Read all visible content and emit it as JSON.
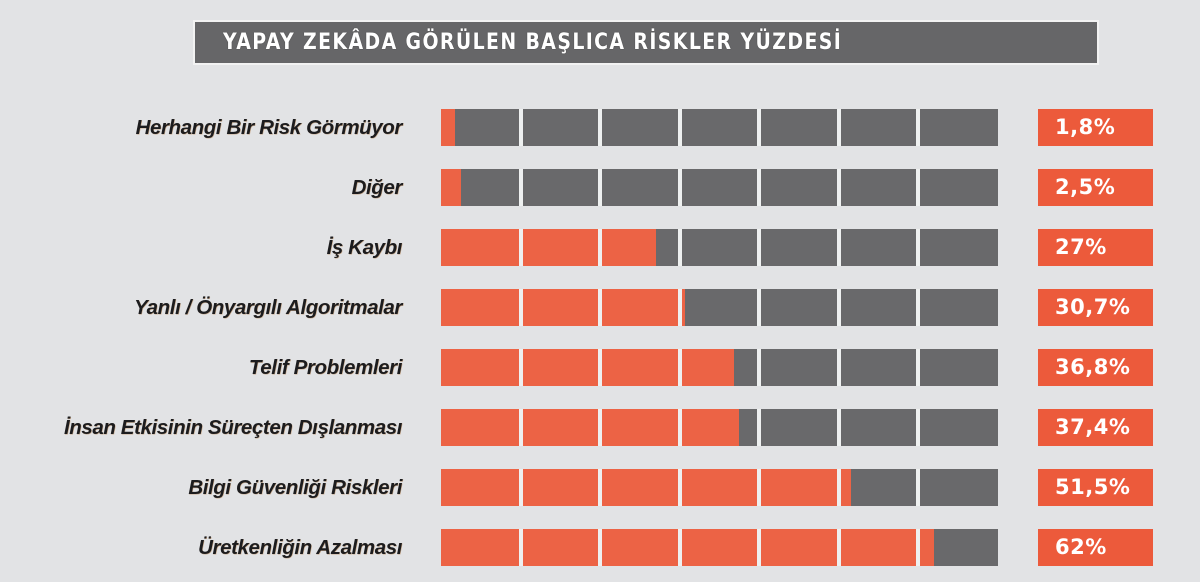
{
  "title": "YAPAY ZEKÂDA GÖRÜLEN BAŞLICA RİSKLER YÜZDESİ",
  "colors": {
    "background": "#e2e3e5",
    "title_box": "#666668",
    "bar_track": "#69696b",
    "bar_fill": "#ec6345",
    "value_box": "#ec5a3b",
    "segment_divider": "#eef0f0"
  },
  "scale": {
    "max_percent": 70,
    "segments": 7,
    "segment_percent": 10
  },
  "rows": [
    {
      "label": "Herhangi Bir Risk Görmüyor",
      "value": 1.8,
      "display": "1,8%"
    },
    {
      "label": "Diğer",
      "value": 2.5,
      "display": "2,5%"
    },
    {
      "label": "İş Kaybı",
      "value": 27,
      "display": "27%"
    },
    {
      "label": "Yanlı / Önyargılı Algoritmalar",
      "value": 30.7,
      "display": "30,7%"
    },
    {
      "label": "Telif Problemleri",
      "value": 36.8,
      "display": "36,8%"
    },
    {
      "label": "İnsan Etkisinin Süreçten Dışlanması",
      "value": 37.4,
      "display": "37,4%"
    },
    {
      "label": "Bilgi Güvenliği Riskleri",
      "value": 51.5,
      "display": "51,5%"
    },
    {
      "label": "Üretkenliğin Azalması",
      "value": 62,
      "display": "62%"
    }
  ],
  "chart_data": {
    "type": "bar",
    "orientation": "horizontal",
    "title": "YAPAY ZEKÂDA GÖRÜLEN BAŞLICA RİSKLER YÜZDESİ",
    "categories": [
      "Herhangi Bir Risk Görmüyor",
      "Diğer",
      "İş Kaybı",
      "Yanlı / Önyargılı Algoritmalar",
      "Telif Problemleri",
      "İnsan Etkisinin Süreçten Dışlanması",
      "Bilgi Güvenliği Riskleri",
      "Üretkenliğin Azalması"
    ],
    "values": [
      1.8,
      2.5,
      27,
      30.7,
      36.8,
      37.4,
      51.5,
      62
    ],
    "data_labels": [
      "1,8%",
      "2,5%",
      "27%",
      "30,7%",
      "36,8%",
      "37,4%",
      "51,5%",
      "62%"
    ],
    "xlabel": "",
    "ylabel": "",
    "xlim": [
      0,
      70
    ],
    "unit": "%",
    "grid": false,
    "legend": null,
    "notes": "Each bar track is split into 7 equal segments (10% each); value labels shown in orange boxes at right."
  }
}
